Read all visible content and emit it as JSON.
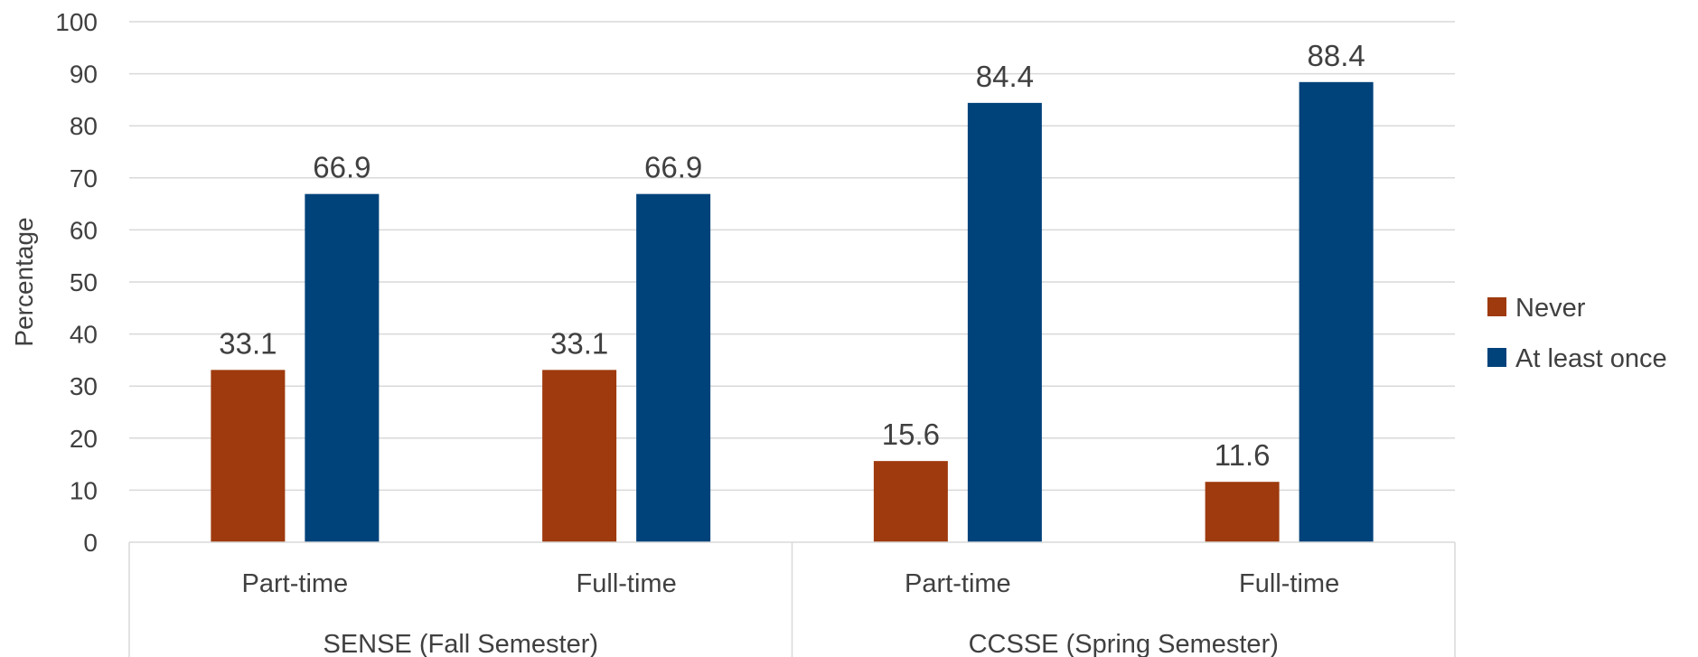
{
  "chart_data": {
    "type": "bar",
    "ylabel": "Percentage",
    "xlabel": "",
    "ylim": [
      0,
      100
    ],
    "y_ticks": [
      0,
      10,
      20,
      30,
      40,
      50,
      60,
      70,
      80,
      90,
      100
    ],
    "groups": [
      {
        "label": "SENSE (Fall Semester)",
        "categories": [
          "Part-time",
          "Full-time"
        ]
      },
      {
        "label": "CCSSE (Spring Semester)",
        "categories": [
          "Part-time",
          "Full-time"
        ]
      }
    ],
    "categories": [
      "Part-time",
      "Full-time",
      "Part-time",
      "Full-time"
    ],
    "series": [
      {
        "name": "Never",
        "color": "#9E3A0E",
        "values": [
          33.1,
          33.1,
          15.6,
          11.6
        ]
      },
      {
        "name": "At least once",
        "color": "#00427A",
        "values": [
          66.9,
          66.9,
          84.4,
          88.4
        ]
      }
    ],
    "legend_position": "right",
    "grid": true,
    "data_labels": true
  }
}
